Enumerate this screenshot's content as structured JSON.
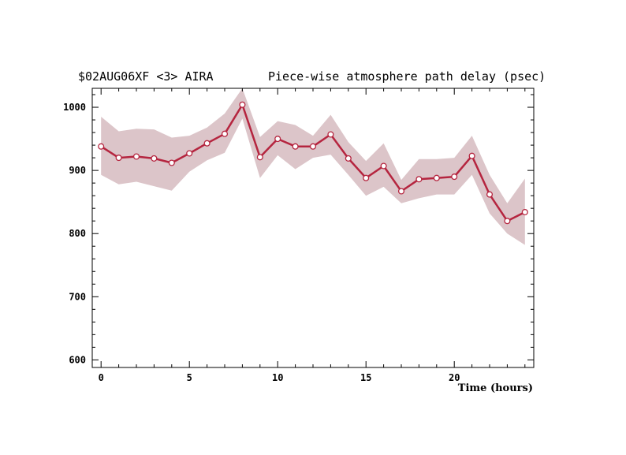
{
  "chart_data": {
    "type": "line",
    "title_left": "$02AUG06XF <3>  AIRA",
    "title_right": "Piece-wise atmosphere path delay (psec)",
    "xlabel": "Time (hours)",
    "ylabel": "",
    "xlim": [
      -0.5,
      24.5
    ],
    "ylim": [
      588,
      1030
    ],
    "x_ticks": [
      0,
      5,
      10,
      15,
      20
    ],
    "y_ticks": [
      600,
      700,
      800,
      900,
      1000
    ],
    "grid": false,
    "colors": {
      "line": "#b5253f",
      "band": "#dcc5c9",
      "marker_fill": "#ffffff"
    },
    "x": [
      0,
      1,
      2,
      3,
      4,
      5,
      6,
      7,
      8,
      9,
      10,
      11,
      12,
      13,
      14,
      15,
      16,
      17,
      18,
      19,
      20,
      21,
      22,
      23,
      24
    ],
    "series": [
      {
        "values": [
          938,
          920,
          922,
          919,
          912,
          927,
          943,
          958,
          1004,
          921,
          950,
          938,
          938,
          957,
          919,
          888,
          907,
          867,
          886,
          888,
          890,
          923,
          862,
          820,
          834
        ],
        "upper": [
          985,
          962,
          966,
          965,
          952,
          955,
          968,
          990,
          1030,
          953,
          978,
          972,
          955,
          988,
          945,
          915,
          943,
          885,
          918,
          918,
          920,
          955,
          893,
          848,
          887
        ],
        "lower": [
          893,
          878,
          882,
          875,
          868,
          898,
          916,
          928,
          982,
          888,
          924,
          902,
          920,
          925,
          893,
          860,
          874,
          848,
          856,
          862,
          862,
          893,
          832,
          800,
          782
        ]
      }
    ]
  }
}
